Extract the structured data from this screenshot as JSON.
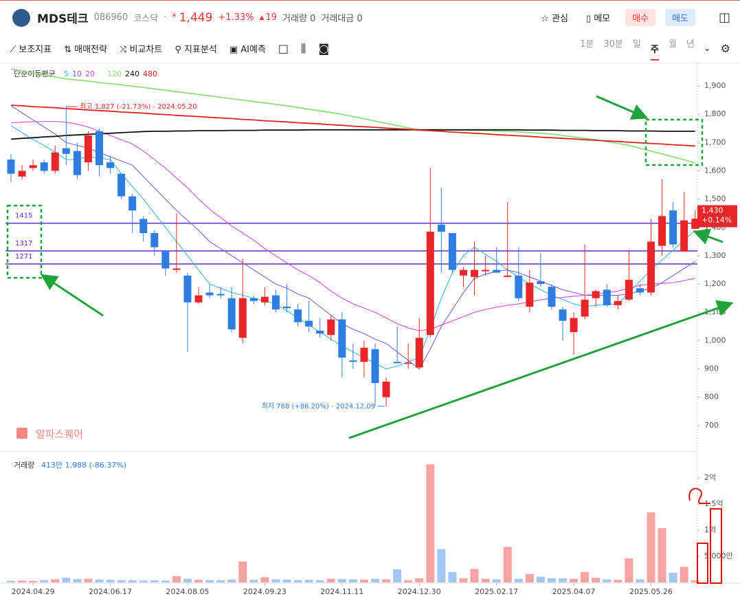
{
  "header": {
    "name": "MDS테크",
    "code": "086960",
    "market": "코스닥",
    "dot": "·",
    "star": "*",
    "price": "1,449",
    "change_pct": "+1.33%",
    "change": "19",
    "volume": "거래량 0",
    "amount": "거래대금 0",
    "watch": "관심",
    "memo": "메모",
    "buy": "매수",
    "sell": "매도"
  },
  "toolbar": {
    "items": [
      "보조지표",
      "매매전략",
      "비교차트",
      "지표분석",
      "AI예측"
    ],
    "periods": [
      "1분",
      "30분",
      "일",
      "주",
      "월",
      "년"
    ]
  },
  "watermark": "알파스퀘어",
  "chart_data": {
    "type": "candlestick",
    "ma_label": "단순이동평균",
    "categories": [
      null,
      null,
      "2024.04.29",
      null,
      null,
      null,
      null,
      null,
      null,
      "2024.06.17",
      null,
      null,
      null,
      null,
      null,
      null,
      "2024.08.05",
      null,
      null,
      null,
      null,
      null,
      null,
      "2024.09.23",
      null,
      null,
      null,
      null,
      null,
      null,
      "2024.11.11",
      null,
      null,
      null,
      null,
      null,
      null,
      "2024.12.30",
      null,
      null,
      null,
      null,
      null,
      null,
      "2025.02.17",
      null,
      null,
      null,
      null,
      null,
      null,
      "2025.04.07",
      null,
      null,
      null,
      null,
      null,
      null,
      "2025.05.26",
      null,
      null,
      null,
      null
    ],
    "open": [
      1640,
      1580,
      1610,
      1630,
      1600,
      1680,
      1670,
      1630,
      1740,
      1630,
      1590,
      1510,
      1430,
      1380,
      1315,
      1250,
      1230,
      1135,
      1170,
      1165,
      1150,
      1010,
      1150,
      1135,
      1160,
      1120,
      1110,
      1070,
      1035,
      1020,
      1075,
      930,
      925,
      970,
      800,
      925,
      918,
      905,
      1020,
      1410,
      1380,
      1230,
      1225,
      1245,
      1250,
      1225,
      1230,
      1120,
      1210,
      1190,
      1110,
      1030,
      1085,
      1150,
      1180,
      1125,
      1145,
      1185,
      1170,
      1335,
      1460,
      1315,
      1395
    ],
    "high": [
      1660,
      1620,
      1640,
      1640,
      1690,
      1827,
      1700,
      1740,
      1750,
      1650,
      1590,
      1520,
      1440,
      1390,
      1320,
      1450,
      1240,
      1190,
      1200,
      1190,
      1190,
      1290,
      1160,
      1190,
      1180,
      1200,
      1130,
      1140,
      1080,
      1090,
      1100,
      990,
      1000,
      990,
      870,
      1050,
      990,
      1080,
      1610,
      1540,
      1380,
      1260,
      1350,
      1300,
      1330,
      1490,
      1330,
      1250,
      1310,
      1200,
      1120,
      1100,
      1340,
      1180,
      1200,
      1160,
      1320,
      1200,
      1430,
      1570,
      1490,
      1525,
      1460
    ],
    "low": [
      1560,
      1570,
      1600,
      1590,
      1590,
      1620,
      1570,
      1600,
      1580,
      1590,
      1500,
      1380,
      1350,
      1300,
      1230,
      1240,
      960,
      1130,
      1150,
      1150,
      1030,
      990,
      1130,
      1125,
      1100,
      1100,
      1050,
      1030,
      1010,
      1000,
      870,
      900,
      870,
      770,
      768,
      920,
      900,
      905,
      1010,
      1240,
      1240,
      1190,
      1160,
      1230,
      1240,
      1225,
      1140,
      1100,
      1190,
      1110,
      1000,
      950,
      1075,
      1120,
      1120,
      1110,
      1140,
      1160,
      1160,
      1300,
      1330,
      1315,
      1395
    ],
    "close": [
      1590,
      1600,
      1620,
      1600,
      1665,
      1660,
      1585,
      1725,
      1620,
      1610,
      1510,
      1460,
      1380,
      1330,
      1255,
      1255,
      1135,
      1160,
      1160,
      1160,
      1040,
      1150,
      1140,
      1155,
      1110,
      1115,
      1065,
      1050,
      1025,
      1075,
      940,
      925,
      975,
      850,
      855,
      920,
      922,
      1010,
      1385,
      1385,
      1250,
      1250,
      1250,
      1250,
      1240,
      1230,
      1150,
      1205,
      1200,
      1120,
      1070,
      1080,
      1145,
      1175,
      1125,
      1140,
      1215,
      1170,
      1350,
      1440,
      1340,
      1425,
      1430
    ],
    "volume": [
      300,
      350,
      300,
      450,
      600,
      900,
      650,
      700,
      550,
      500,
      450,
      400,
      350,
      400,
      350,
      1200,
      700,
      500,
      450,
      400,
      550,
      4000,
      500,
      1000,
      600,
      550,
      450,
      500,
      400,
      700,
      650,
      600,
      550,
      700,
      600,
      2500,
      400,
      800,
      22600,
      6400,
      2000,
      800,
      2600,
      700,
      600,
      6800,
      700,
      1600,
      1100,
      800,
      800,
      700,
      2000,
      900,
      600,
      500,
      4600,
      600,
      13400,
      10400,
      1850,
      3000,
      413
    ],
    "up_color": "#e8262a",
    "down_color": "#2f7de1",
    "volume_up_color": "#f5a3a3",
    "volume_down_color": "#a3c6f2",
    "series": [
      {
        "name": "5",
        "color": "#3fb6e8",
        "values": [
          1760,
          1735,
          1710,
          1690,
          1665,
          1640,
          1640,
          1650,
          1645,
          1640,
          1590,
          1545,
          1500,
          1450,
          1400,
          1350,
          1300,
          1250,
          1200,
          1185,
          1170,
          1160,
          1150,
          1140,
          1130,
          1105,
          1080,
          1055,
          1030,
          1005,
          980,
          960,
          940,
          920,
          900,
          910,
          925,
          940,
          1040,
          1150,
          1240,
          1300,
          1330,
          1305,
          1280,
          1250,
          1225,
          1200,
          1180,
          1160,
          1145,
          1130,
          1120,
          1125,
          1128,
          1130,
          1170,
          1210,
          1250,
          1285,
          1320,
          1355,
          1390
        ]
      },
      {
        "name": "10",
        "color": "#6f64e0",
        "values": [
          1830,
          1805,
          1780,
          1755,
          1730,
          1700,
          1690,
          1680,
          1665,
          1650,
          1635,
          1620,
          1580,
          1540,
          1500,
          1460,
          1425,
          1390,
          1350,
          1325,
          1300,
          1275,
          1250,
          1225,
          1200,
          1185,
          1165,
          1150,
          1120,
          1090,
          1060,
          1040,
          1025,
          1005,
          990,
          960,
          930,
          900,
          970,
          1050,
          1110,
          1170,
          1220,
          1235,
          1245,
          1250,
          1240,
          1225,
          1210,
          1195,
          1180,
          1170,
          1160,
          1160,
          1160,
          1160,
          1165,
          1175,
          1185,
          1205,
          1230,
          1255,
          1280
        ]
      },
      {
        "name": "20",
        "color": "#d04ce8",
        "values": [
          1770,
          1772,
          1774,
          1775,
          1775,
          1772,
          1765,
          1755,
          1740,
          1725,
          1710,
          1695,
          1670,
          1640,
          1610,
          1575,
          1540,
          1500,
          1465,
          1435,
          1405,
          1380,
          1355,
          1325,
          1300,
          1275,
          1250,
          1230,
          1205,
          1175,
          1150,
          1130,
          1115,
          1100,
          1080,
          1060,
          1045,
          1035,
          1040,
          1055,
          1070,
          1085,
          1100,
          1110,
          1118,
          1125,
          1130,
          1137,
          1144,
          1150,
          1153,
          1157,
          1160,
          1165,
          1170,
          1175,
          1185,
          1195,
          1200,
          1202,
          1205,
          1212,
          1220
        ]
      },
      {
        "name": "120",
        "color": "#8fdc7c",
        "values": [
          1960,
          1953,
          1946,
          1939,
          1932,
          1925,
          1921,
          1917,
          1912,
          1908,
          1904,
          1899,
          1895,
          1890,
          1885,
          1880,
          1875,
          1870,
          1865,
          1860,
          1855,
          1850,
          1845,
          1840,
          1835,
          1830,
          1824,
          1818,
          1812,
          1806,
          1800,
          1792,
          1784,
          1776,
          1768,
          1760,
          1752,
          1745,
          1745,
          1745,
          1744,
          1744,
          1743,
          1742,
          1741,
          1740,
          1738,
          1735,
          1733,
          1730,
          1725,
          1720,
          1715,
          1710,
          1703,
          1697,
          1690,
          1680,
          1670,
          1660,
          1649,
          1639,
          1628
        ]
      },
      {
        "name": "240",
        "color": "#111111",
        "values": [
          1712,
          1715,
          1717,
          1720,
          1722,
          1725,
          1727,
          1729,
          1731,
          1733,
          1735,
          1737,
          1739,
          1740,
          1740,
          1741,
          1741,
          1742,
          1742,
          1742,
          1743,
          1743,
          1743,
          1744,
          1744,
          1744,
          1744,
          1745,
          1745,
          1745,
          1745,
          1745,
          1745,
          1745,
          1745,
          1745,
          1745,
          1745,
          1745,
          1745,
          1745,
          1745,
          1745,
          1745,
          1745,
          1745,
          1745,
          1744,
          1744,
          1744,
          1743,
          1743,
          1743,
          1742,
          1742,
          1742,
          1741,
          1741,
          1741,
          1740,
          1740,
          1740,
          1740
        ]
      },
      {
        "name": "480",
        "color": "#e02020",
        "values": [
          1832,
          1830,
          1827,
          1825,
          1823,
          1820,
          1818,
          1815,
          1813,
          1811,
          1808,
          1806,
          1804,
          1801,
          1799,
          1796,
          1794,
          1792,
          1789,
          1787,
          1785,
          1782,
          1780,
          1777,
          1775,
          1773,
          1770,
          1768,
          1766,
          1763,
          1761,
          1758,
          1756,
          1754,
          1751,
          1749,
          1747,
          1744,
          1742,
          1740,
          1737,
          1735,
          1733,
          1731,
          1728,
          1726,
          1724,
          1722,
          1719,
          1717,
          1715,
          1713,
          1710,
          1708,
          1706,
          1704,
          1701,
          1699,
          1697,
          1695,
          1692,
          1690,
          1688
        ]
      }
    ],
    "ylim": [
      612,
      1973
    ],
    "yticks": [
      700,
      800,
      900,
      {
        "value": 1000,
        "label": "1,000"
      },
      {
        "value": 1100,
        "label": "1,100"
      },
      {
        "value": 1200,
        "label": "1,200"
      },
      {
        "value": 1300,
        "label": "1,300"
      },
      {
        "value": 1400,
        "label": "1,400"
      },
      {
        "value": 1500,
        "label": "1,500"
      },
      {
        "value": 1600,
        "label": "1,600"
      },
      {
        "value": 1700,
        "label": "1,700"
      },
      {
        "value": 1800,
        "label": "1,800"
      },
      {
        "value": 1900,
        "label": "1,900"
      }
    ],
    "hlines": [
      1415,
      1317,
      1271
    ],
    "hline_color": "#5b2bd0",
    "high_label": "최고 1,827 (-21.73%) - 2024.05.20",
    "low_label": "최저 768 (+86.20%) - 2024.12.09",
    "last_price": {
      "value": 1430,
      "label": "1,430"
    },
    "last_change": "+0.14%",
    "volume_label": "거래량",
    "volume_info": "413만 1,988 (-86.37%)",
    "y2lim": [
      0,
      24350
    ],
    "y2ticks": [
      {
        "value": 5000,
        "label": "5,000만"
      },
      {
        "value": 10000,
        "label": "1억"
      },
      {
        "value": 15000,
        "label": "1.5억"
      },
      {
        "value": 20000,
        "label": "2억"
      }
    ]
  }
}
